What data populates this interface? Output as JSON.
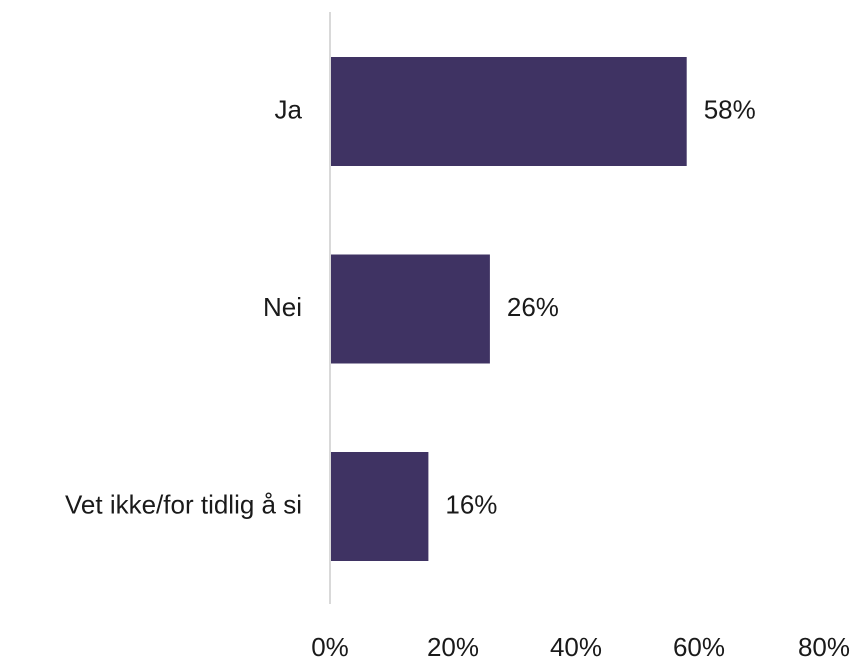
{
  "chart_data": {
    "type": "bar",
    "orientation": "horizontal",
    "categories": [
      "Ja",
      "Nei",
      "Vet ikke/for tidlig å si"
    ],
    "values": [
      58,
      26,
      16
    ],
    "value_labels": [
      "58%",
      "26%",
      "16%"
    ],
    "xlim": [
      0,
      80
    ],
    "xticks": [
      0,
      20,
      40,
      60,
      80
    ],
    "xtick_labels": [
      "0%",
      "20%",
      "40%",
      "60%",
      "80%"
    ],
    "title": "",
    "xlabel": "",
    "ylabel": "",
    "grid": false,
    "legend": "none",
    "bar_color": "#3f3363",
    "axis_color": "#d9d9d9"
  }
}
